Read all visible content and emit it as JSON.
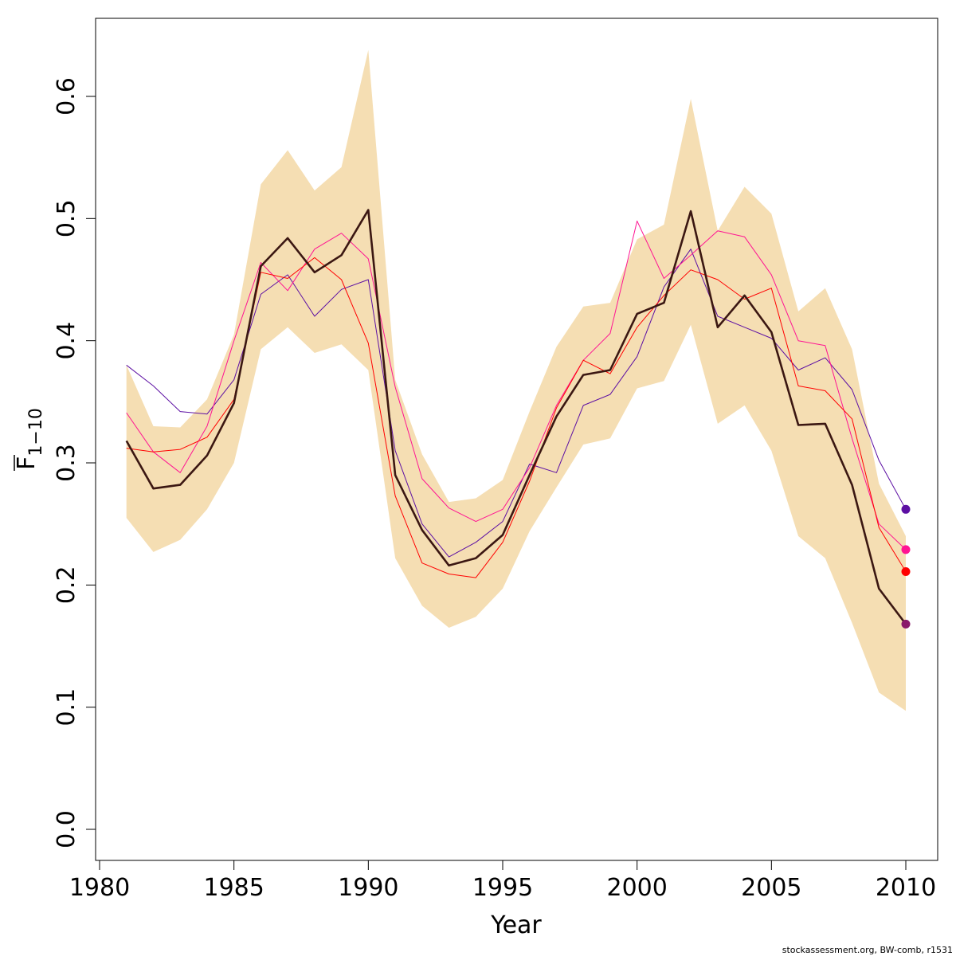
{
  "chart_data": {
    "type": "line",
    "xlabel": "Year",
    "ylabel": "F",
    "ylabel_sub": "1−10",
    "credit": "stockassessment.org, BW-comb, r1531",
    "xlim": [
      1980,
      2010
    ],
    "ylim": [
      0.0,
      0.6
    ],
    "xticks": [
      1980,
      1985,
      1990,
      1995,
      2000,
      2005,
      2010
    ],
    "yticks": [
      0.0,
      0.1,
      0.2,
      0.3,
      0.4,
      0.5,
      0.6
    ],
    "grid": false,
    "legend": "none",
    "x": [
      1981,
      1982,
      1983,
      1984,
      1985,
      1986,
      1987,
      1988,
      1989,
      1990,
      1991,
      1992,
      1993,
      1994,
      1995,
      1996,
      1997,
      1998,
      1999,
      2000,
      2001,
      2002,
      2003,
      2004,
      2005,
      2006,
      2007,
      2008,
      2009,
      2010
    ],
    "band": {
      "color": "#f5deb3",
      "upper": [
        0.38,
        0.33,
        0.329,
        0.352,
        0.405,
        0.528,
        0.556,
        0.523,
        0.542,
        0.638,
        0.368,
        0.307,
        0.268,
        0.271,
        0.286,
        0.342,
        0.395,
        0.428,
        0.431,
        0.483,
        0.495,
        0.598,
        0.49,
        0.526,
        0.504,
        0.424,
        0.443,
        0.393,
        0.283,
        0.24
      ],
      "lower": [
        0.255,
        0.227,
        0.237,
        0.262,
        0.3,
        0.393,
        0.411,
        0.39,
        0.397,
        0.376,
        0.222,
        0.183,
        0.165,
        0.174,
        0.197,
        0.244,
        0.28,
        0.315,
        0.32,
        0.361,
        0.367,
        0.413,
        0.332,
        0.347,
        0.31,
        0.24,
        0.222,
        0.169,
        0.112,
        0.097
      ]
    },
    "series": [
      {
        "color": "#5c0fa3",
        "width": 1,
        "values": [
          0.38,
          0.363,
          0.342,
          0.34,
          0.368,
          0.438,
          0.454,
          0.42,
          0.442,
          0.45,
          0.31,
          0.25,
          0.223,
          0.235,
          0.252,
          0.299,
          0.292,
          0.347,
          0.356,
          0.387,
          0.444,
          0.475,
          0.42,
          0.411,
          0.402,
          0.376,
          0.386,
          0.36,
          0.302,
          0.262
        ],
        "endpoint": 0.262
      },
      {
        "color": "#ff1493",
        "width": 1,
        "values": [
          0.341,
          0.309,
          0.292,
          0.33,
          0.4,
          0.464,
          0.441,
          0.475,
          0.488,
          0.467,
          0.362,
          0.287,
          0.263,
          0.252,
          0.262,
          0.296,
          0.347,
          0.384,
          0.406,
          0.498,
          0.451,
          0.47,
          0.49,
          0.485,
          0.454,
          0.4,
          0.396,
          0.32,
          0.25,
          0.229
        ],
        "endpoint": 0.229
      },
      {
        "color": "#ff0000",
        "width": 1,
        "values": [
          0.312,
          0.309,
          0.311,
          0.321,
          0.352,
          0.456,
          0.451,
          0.468,
          0.45,
          0.398,
          0.273,
          0.218,
          0.209,
          0.206,
          0.235,
          0.285,
          0.345,
          0.384,
          0.373,
          0.411,
          0.437,
          0.458,
          0.45,
          0.434,
          0.443,
          0.363,
          0.359,
          0.336,
          0.247,
          0.211
        ],
        "endpoint": 0.211
      },
      {
        "color": "#3b1712",
        "width": 2.6,
        "values": [
          0.318,
          0.279,
          0.282,
          0.306,
          0.349,
          0.461,
          0.484,
          0.456,
          0.47,
          0.507,
          0.29,
          0.245,
          0.216,
          0.222,
          0.241,
          0.29,
          0.338,
          0.372,
          0.376,
          0.422,
          0.431,
          0.506,
          0.411,
          0.437,
          0.407,
          0.331,
          0.332,
          0.282,
          0.197,
          0.168
        ],
        "endpoint": 0.168,
        "endpoint_color": "#8b1a6b"
      }
    ]
  }
}
